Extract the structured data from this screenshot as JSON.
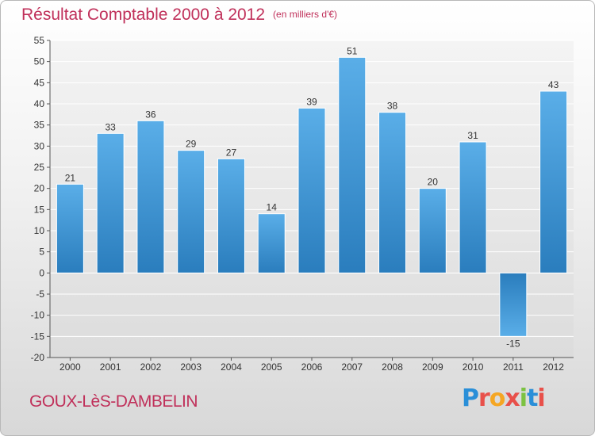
{
  "chart_data": {
    "type": "bar",
    "title": "Résultat Comptable 2000 à 2012",
    "subtitle": "(en milliers d'€)",
    "categories": [
      "2000",
      "2001",
      "2002",
      "2003",
      "2004",
      "2005",
      "2006",
      "2007",
      "2008",
      "2009",
      "2010",
      "2011",
      "2012"
    ],
    "values": [
      21,
      33,
      36,
      29,
      27,
      14,
      39,
      51,
      38,
      20,
      31,
      -15,
      43
    ],
    "data_labels": [
      "21",
      "33",
      "36",
      "29",
      "27",
      "14",
      "39",
      "51",
      "38",
      "20",
      "31",
      "-15",
      "43"
    ],
    "ylim": [
      -20,
      55
    ],
    "yticks": [
      55,
      50,
      45,
      40,
      35,
      30,
      25,
      20,
      15,
      10,
      5,
      0,
      -5,
      -10,
      -15,
      -20
    ],
    "ytick_labels": [
      "55",
      "50",
      "45",
      "40",
      "35",
      "30",
      "25",
      "20",
      "15",
      "10",
      "5",
      "0",
      "-5",
      "-10",
      "-15",
      "-20"
    ],
    "xlabel": "",
    "ylabel": "",
    "grid": true,
    "bar_color_light": "#5aaee8",
    "bar_color_dark": "#2a7dbd"
  },
  "footer": {
    "city": "GOUX-LèS-DAMBELIN",
    "logo_letters": [
      {
        "ch": "P",
        "color": "#2a8fd8"
      },
      {
        "ch": "r",
        "color": "#e8504a"
      },
      {
        "ch": "o",
        "color": "#f5a623"
      },
      {
        "ch": "x",
        "color": "#e8504a"
      },
      {
        "ch": "i",
        "color": "#7cc242"
      },
      {
        "ch": "t",
        "color": "#2a8fd8"
      },
      {
        "ch": "i",
        "color": "#e8504a"
      }
    ]
  },
  "colors": {
    "title": "#c0305a",
    "axis": "#555555",
    "grid": "#ffffff"
  }
}
